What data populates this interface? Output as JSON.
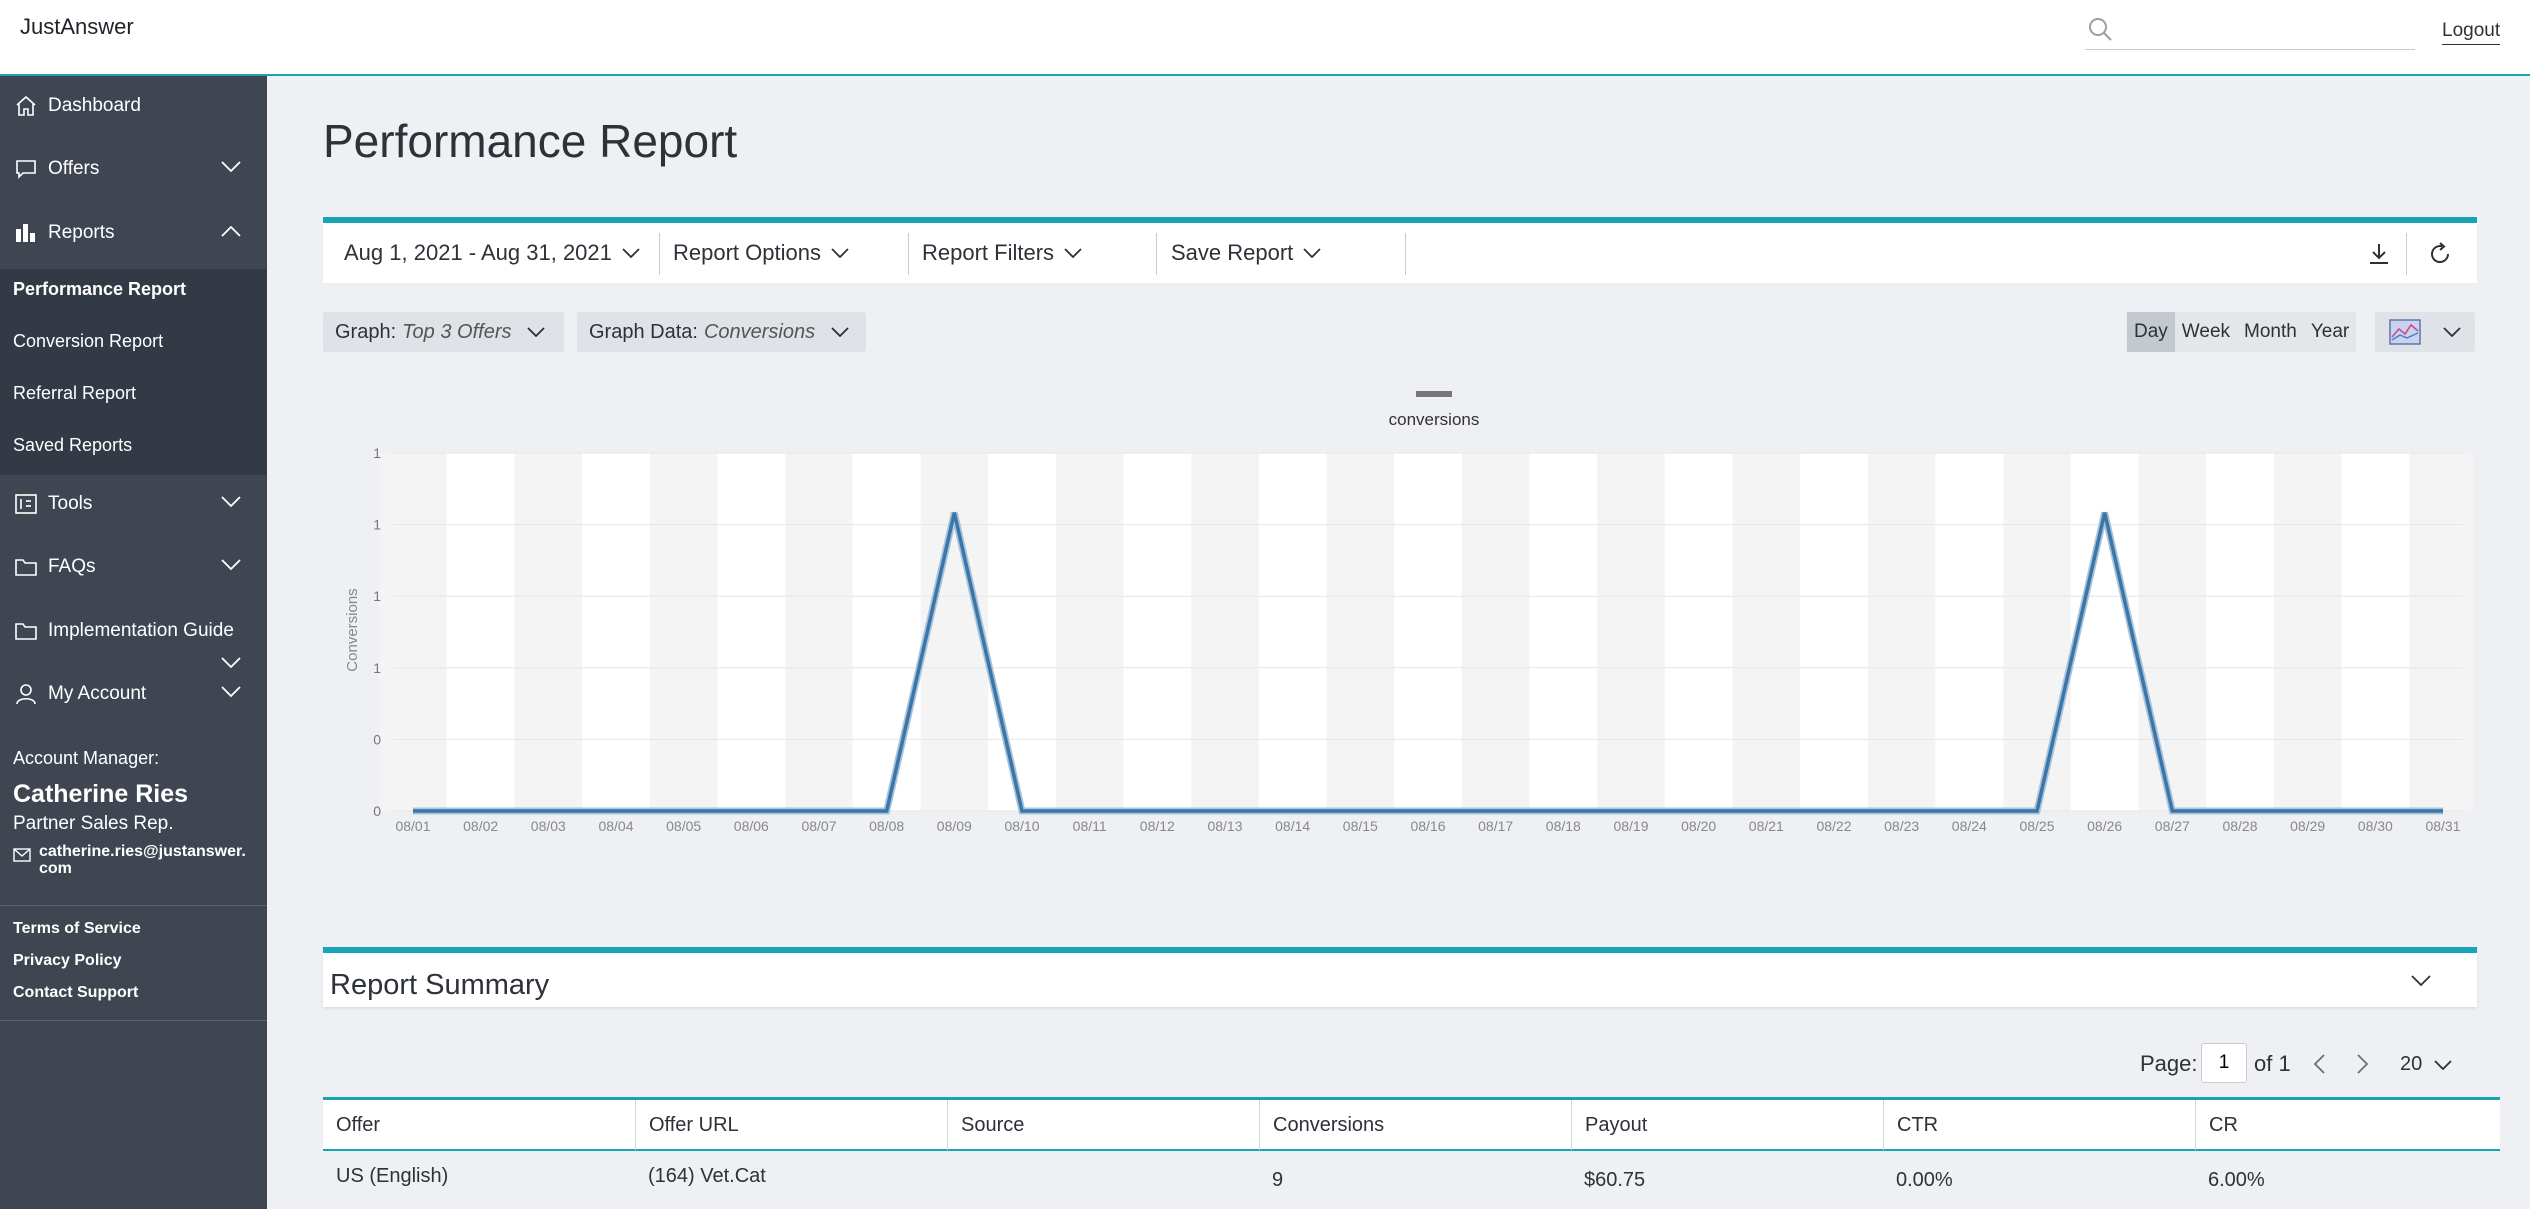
{
  "app": {
    "brand": "JustAnswer",
    "logout_label": "Logout",
    "search_placeholder": ""
  },
  "sidebar": {
    "items": [
      {
        "label": "Dashboard",
        "icon": "home-icon"
      },
      {
        "label": "Offers",
        "icon": "chat-bubble-icon"
      },
      {
        "label": "Reports",
        "icon": "bar-chart-icon"
      },
      {
        "label": "Tools",
        "icon": "tools-icon"
      },
      {
        "label": "FAQs",
        "icon": "folder-icon"
      },
      {
        "label": "Implementation Guide",
        "icon": "folder-icon"
      },
      {
        "label": "My Account",
        "icon": "user-icon"
      }
    ],
    "report_subitems": [
      "Performance Report",
      "Conversion Report",
      "Referral Report",
      "Saved Reports"
    ],
    "account_manager": {
      "heading": "Account Manager:",
      "name": "Catherine Ries",
      "role": "Partner Sales Rep.",
      "email_line1": "catherine.ries@justanswer.",
      "email_line2": "com"
    },
    "footer_links": [
      "Terms of Service",
      "Privacy Policy",
      "Contact Support"
    ]
  },
  "main": {
    "title": "Performance Report",
    "toolbar": {
      "date_range": "Aug 1, 2021 - Aug 31, 2021",
      "report_options": "Report Options",
      "report_filters": "Report Filters",
      "save_report": "Save Report"
    },
    "graph_pill": {
      "label": "Graph:",
      "value": "Top 3 Offers"
    },
    "graph_data_pill": {
      "label": "Graph Data:",
      "value": "Conversions"
    },
    "range_buttons": [
      "Day",
      "Week",
      "Month",
      "Year"
    ],
    "range_selected": "Day"
  },
  "chart_data": {
    "type": "line",
    "legend": [
      "conversions"
    ],
    "ylabel": "Conversions",
    "yticks": [
      "0",
      "0",
      "1",
      "1",
      "1",
      "1"
    ],
    "x": [
      "08/01",
      "08/02",
      "08/03",
      "08/04",
      "08/05",
      "08/06",
      "08/07",
      "08/08",
      "08/09",
      "08/10",
      "08/11",
      "08/12",
      "08/13",
      "08/14",
      "08/15",
      "08/16",
      "08/17",
      "08/18",
      "08/19",
      "08/20",
      "08/21",
      "08/22",
      "08/23",
      "08/24",
      "08/25",
      "08/26",
      "08/27",
      "08/28",
      "08/29",
      "08/30",
      "08/31"
    ],
    "series": [
      {
        "name": "conversions",
        "values": [
          0,
          0,
          0,
          0,
          0,
          0,
          0,
          0,
          1,
          0,
          0,
          0,
          0,
          0,
          0,
          0,
          0,
          0,
          0,
          0,
          0,
          0,
          0,
          0,
          0,
          1,
          0,
          0,
          0,
          0,
          0
        ]
      }
    ],
    "ylim": [
      0,
      1.2
    ],
    "color": "#3a77a8",
    "grid": true
  },
  "summary": {
    "title": "Report Summary",
    "pager": {
      "page_label": "Page:",
      "page_value": "1",
      "of_label": "of 1",
      "per_page": "20"
    },
    "columns": [
      "Offer",
      "Offer URL",
      "Source",
      "Conversions",
      "Payout",
      "CTR",
      "CR"
    ],
    "rows": [
      [
        "US (English)",
        "(164) Vet.Cat",
        "",
        "9",
        "$60.75",
        "0.00%",
        "6.00%"
      ]
    ]
  }
}
